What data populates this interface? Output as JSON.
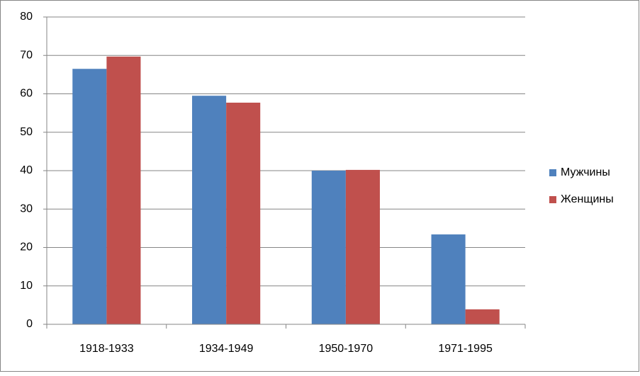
{
  "chart_data": {
    "type": "bar",
    "categories": [
      "1918-1933",
      "1934-1949",
      "1950-1970",
      "1971-1995"
    ],
    "series": [
      {
        "name": "Мужчины",
        "color": "#4f81bd",
        "values": [
          66.5,
          59.5,
          40,
          23.4
        ]
      },
      {
        "name": "Женщины",
        "color": "#c0504d",
        "values": [
          69.7,
          57.7,
          40.2,
          3.9
        ]
      }
    ],
    "ylim": [
      0,
      80
    ],
    "yticks": [
      0,
      10,
      20,
      30,
      40,
      50,
      60,
      70,
      80
    ],
    "grid": true,
    "legend": "right"
  }
}
